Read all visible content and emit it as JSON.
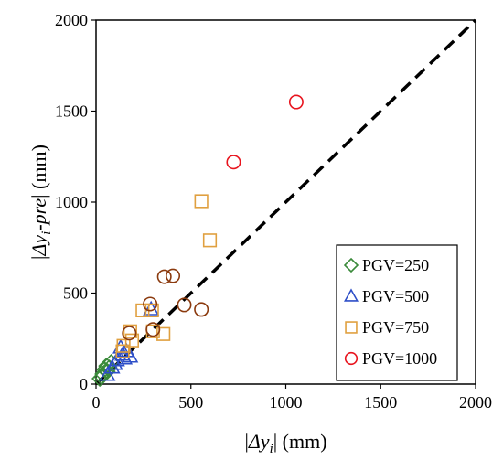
{
  "chart_data": {
    "type": "scatter",
    "title": "",
    "xlabel": {
      "pre": "|",
      "sym": "Δy",
      "sub": "i",
      "post": "| (mm)"
    },
    "ylabel": {
      "pre": "|",
      "sym": "Δy",
      "sub": "i",
      "mid": "-pre",
      "post": "| (mm)"
    },
    "xlim": [
      0,
      2000
    ],
    "ylim": [
      0,
      2000
    ],
    "xticks": [
      "0",
      "500",
      "1000",
      "1500",
      "2000"
    ],
    "yticks": [
      "0",
      "500",
      "1000",
      "1500",
      "2000"
    ],
    "grid": false,
    "legend_position": "bottom-right",
    "reference_line": {
      "style": "dashed",
      "color": "#000000",
      "from": [
        0,
        0
      ],
      "to": [
        2000,
        2000
      ]
    },
    "series": [
      {
        "name": "PGV=250",
        "marker": "diamond",
        "color": "#3a8a3a",
        "points": [
          [
            20,
            30
          ],
          [
            35,
            55
          ],
          [
            45,
            80
          ],
          [
            55,
            100
          ],
          [
            70,
            90
          ],
          [
            80,
            120
          ],
          [
            30,
            40
          ],
          [
            60,
            70
          ]
        ]
      },
      {
        "name": "PGV=500",
        "marker": "triangle",
        "color": "#2e4fc8",
        "points": [
          [
            60,
            50
          ],
          [
            85,
            90
          ],
          [
            110,
            130
          ],
          [
            140,
            160
          ],
          [
            160,
            180
          ],
          [
            180,
            150
          ],
          [
            130,
            200
          ],
          [
            290,
            410
          ],
          [
            150,
            140
          ],
          [
            100,
            110
          ]
        ]
      },
      {
        "name": "PGV=750",
        "marker": "square",
        "color": "#e0a040",
        "points": [
          [
            145,
            210
          ],
          [
            180,
            290
          ],
          [
            245,
            405
          ],
          [
            300,
            290
          ],
          [
            355,
            275
          ],
          [
            295,
            405
          ],
          [
            555,
            1005
          ],
          [
            600,
            790
          ],
          [
            190,
            240
          ],
          [
            140,
            180
          ]
        ]
      },
      {
        "name": "PGV=1000",
        "marker": "circle",
        "color": "#e8141e",
        "points": [
          [
            1055,
            1550
          ],
          [
            725,
            1220
          ]
        ]
      },
      {
        "name": "",
        "marker": "circle",
        "color": "#8b3a0e",
        "points": [
          [
            175,
            280
          ],
          [
            285,
            440
          ],
          [
            360,
            590
          ],
          [
            405,
            595
          ],
          [
            465,
            435
          ],
          [
            555,
            410
          ],
          [
            300,
            300
          ]
        ]
      }
    ]
  }
}
